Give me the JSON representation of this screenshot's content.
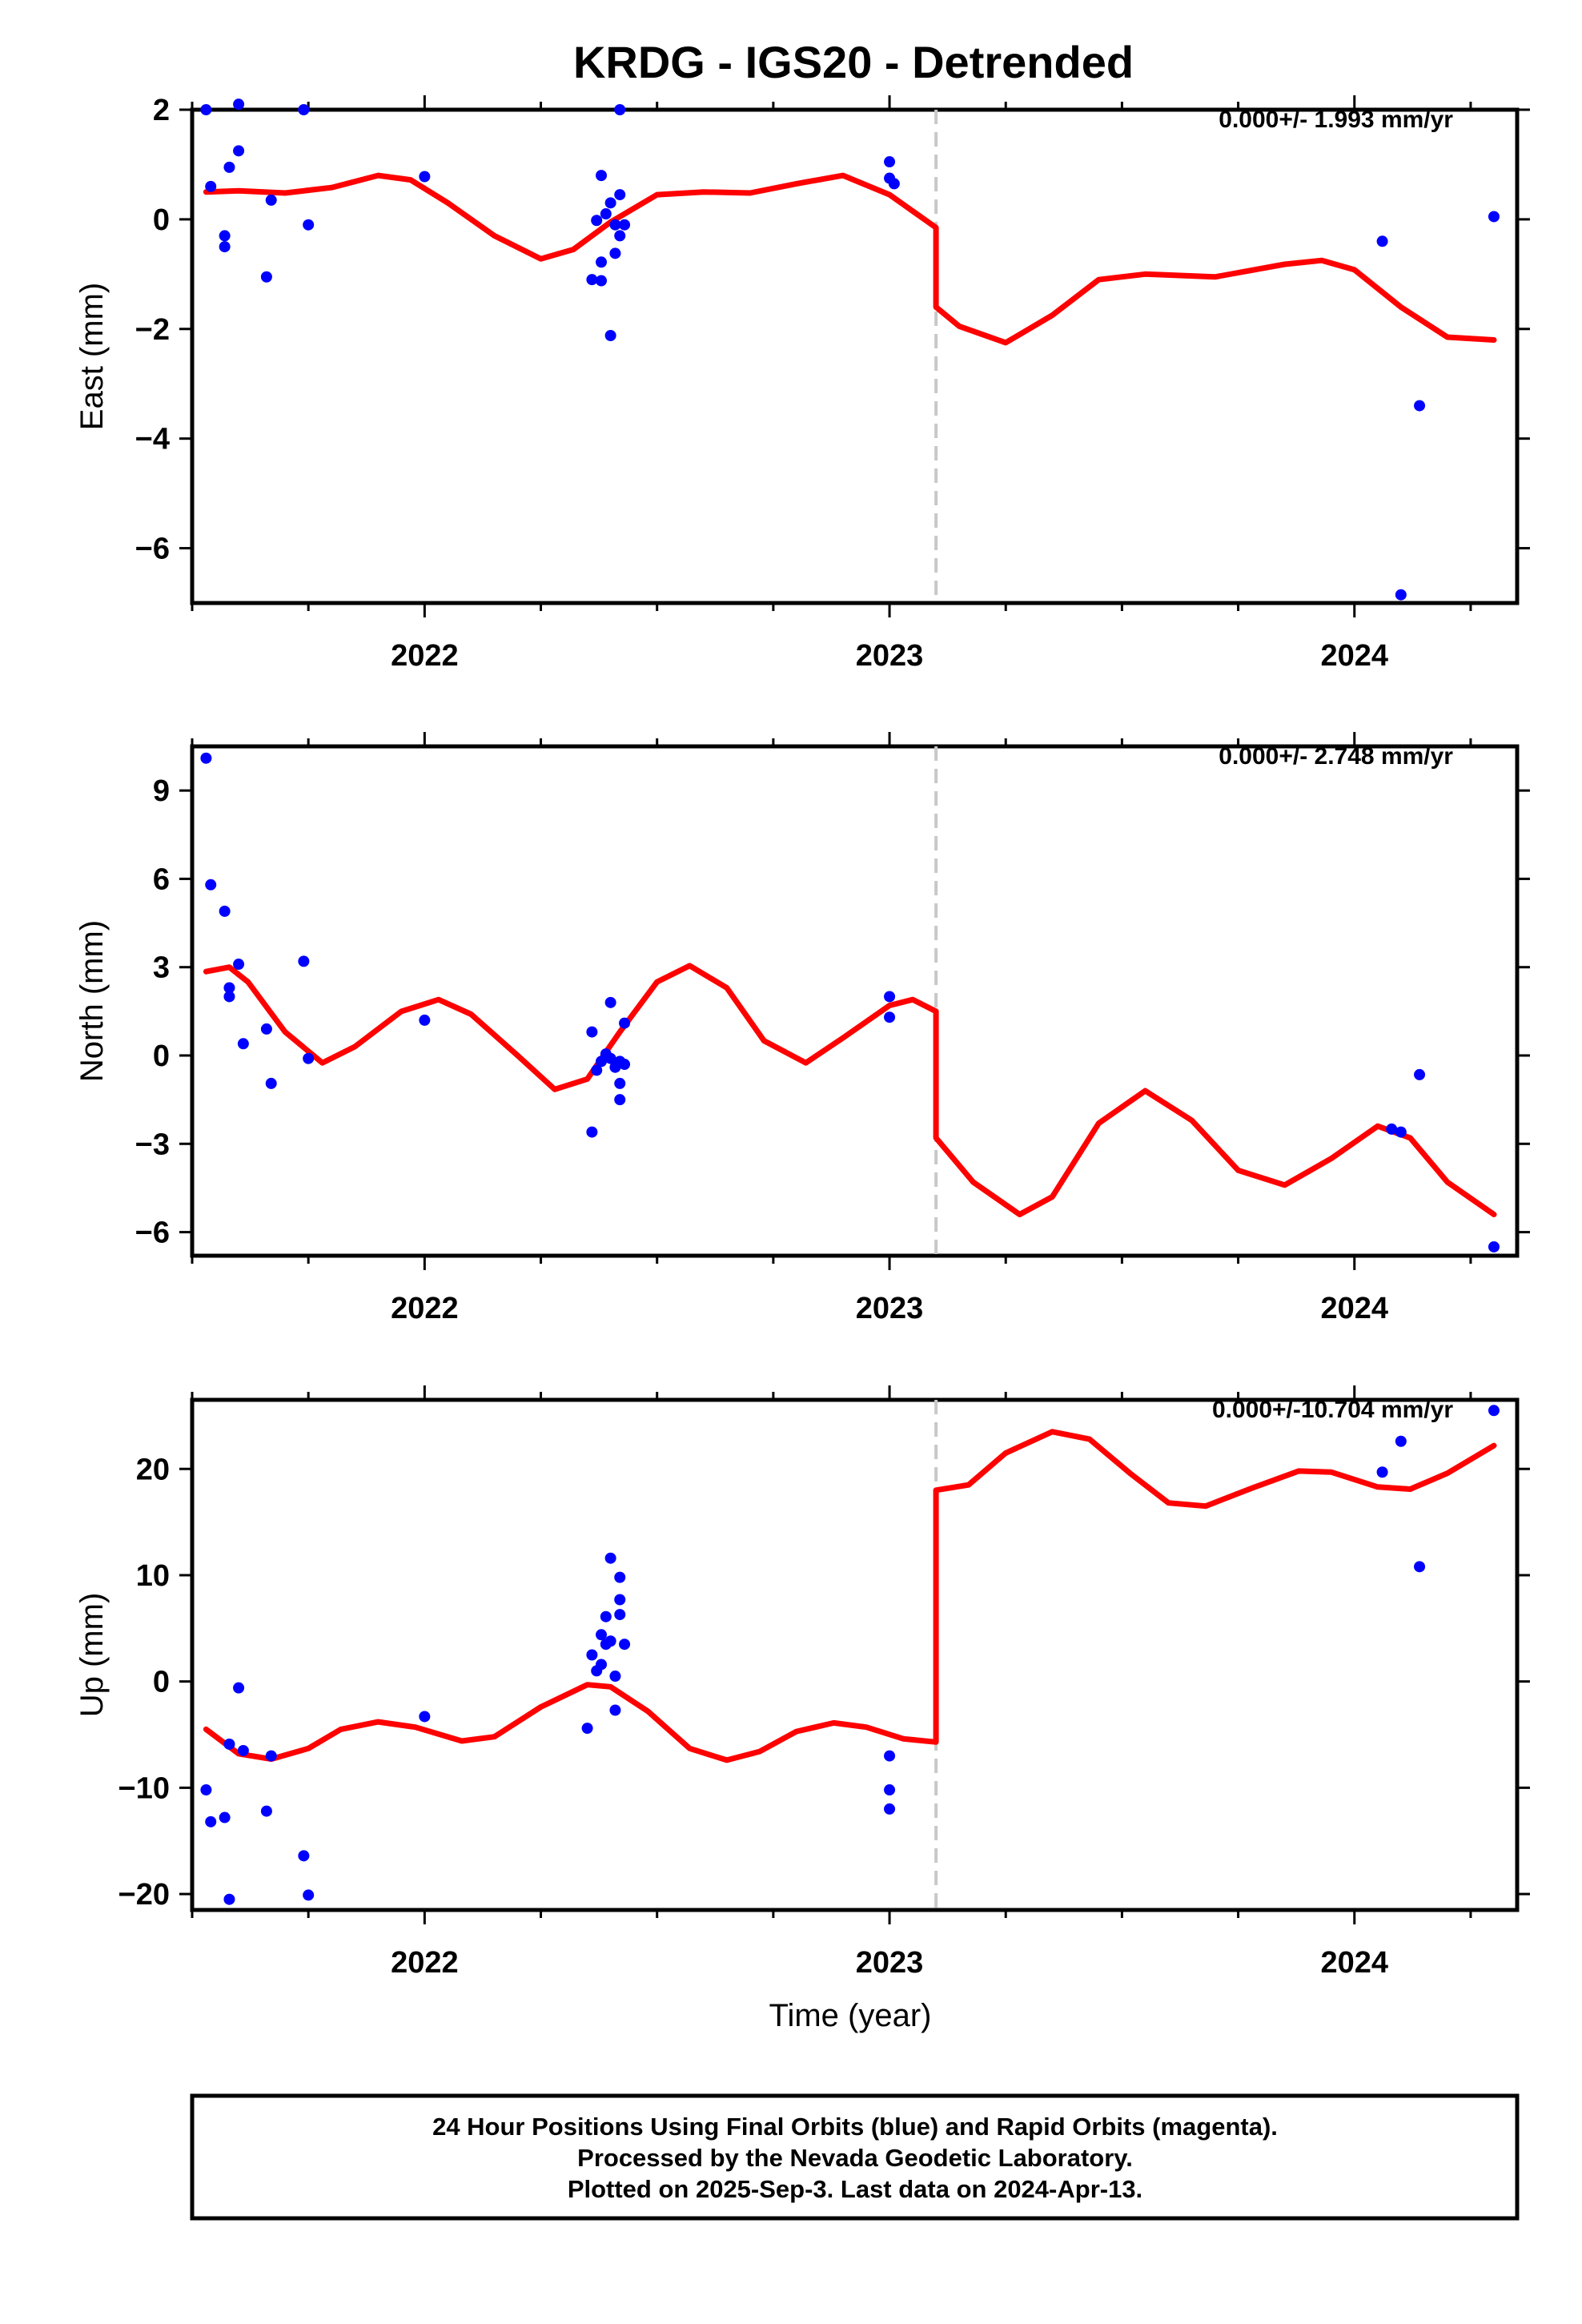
{
  "title": "KRDG - IGS20 - Detrended",
  "caption": [
    "24 Hour Positions Using Final Orbits (blue) and Rapid Orbits (magenta).",
    "Processed by the Nevada Geodetic Laboratory.",
    "Plotted on 2025-Sep-3. Last data on 2024-Apr-13."
  ],
  "colors": {
    "data_points": "#0000ff",
    "model_line": "#ff0000",
    "offset_line": "#c8c8c8",
    "frame": "#000000"
  },
  "chart_data": [
    {
      "type": "scatter",
      "ylabel": "East (mm)",
      "rate_text": "0.000+/- 1.993 mm/yr",
      "xlim": [
        2021.5,
        2024.35
      ],
      "ylim": [
        -7.0,
        2.0
      ],
      "xticks": [
        2022,
        2023,
        2024
      ],
      "xtick_labels": [
        "2022",
        "2023",
        "2024"
      ],
      "yticks": [
        2,
        0,
        -2,
        -4,
        -6
      ],
      "ytick_labels": [
        "2",
        "0",
        "−2",
        "−4",
        "−6"
      ],
      "offset_epoch": 2023.1,
      "series": [
        {
          "kind": "points",
          "points": [
            [
              2021.53,
              2.0
            ],
            [
              2021.54,
              0.6
            ],
            [
              2021.57,
              -0.3
            ],
            [
              2021.57,
              -0.5
            ],
            [
              2021.58,
              0.95
            ],
            [
              2021.6,
              1.25
            ],
            [
              2021.6,
              2.1
            ],
            [
              2021.66,
              -1.05
            ],
            [
              2021.67,
              0.35
            ],
            [
              2021.74,
              2.0
            ],
            [
              2021.75,
              -0.1
            ],
            [
              2022.0,
              0.78
            ],
            [
              2022.36,
              -1.1
            ],
            [
              2022.37,
              -0.02
            ],
            [
              2022.38,
              0.8
            ],
            [
              2022.38,
              -0.78
            ],
            [
              2022.38,
              -1.12
            ],
            [
              2022.39,
              0.1
            ],
            [
              2022.4,
              -2.12
            ],
            [
              2022.4,
              0.3
            ],
            [
              2022.41,
              -0.1
            ],
            [
              2022.41,
              -0.62
            ],
            [
              2022.42,
              0.45
            ],
            [
              2022.42,
              2.0
            ],
            [
              2022.42,
              -0.3
            ],
            [
              2022.43,
              -0.1
            ],
            [
              2023.0,
              1.05
            ],
            [
              2023.0,
              0.75
            ],
            [
              2023.01,
              0.65
            ],
            [
              2024.06,
              -0.4
            ],
            [
              2024.1,
              -6.85
            ],
            [
              2024.14,
              -3.4
            ],
            [
              2024.3,
              0.05
            ]
          ]
        },
        {
          "kind": "model",
          "points": [
            [
              2021.53,
              0.5
            ],
            [
              2021.6,
              0.52
            ],
            [
              2021.7,
              0.48
            ],
            [
              2021.8,
              0.58
            ],
            [
              2021.9,
              0.8
            ],
            [
              2021.97,
              0.72
            ],
            [
              2022.05,
              0.3
            ],
            [
              2022.15,
              -0.3
            ],
            [
              2022.25,
              -0.72
            ],
            [
              2022.32,
              -0.55
            ],
            [
              2022.4,
              -0.05
            ],
            [
              2022.5,
              0.45
            ],
            [
              2022.6,
              0.5
            ],
            [
              2022.7,
              0.48
            ],
            [
              2022.8,
              0.65
            ],
            [
              2022.9,
              0.8
            ],
            [
              2023.0,
              0.45
            ],
            [
              2023.1,
              -0.15
            ],
            [
              2023.1,
              -1.6
            ],
            [
              2023.15,
              -1.95
            ],
            [
              2023.25,
              -2.25
            ],
            [
              2023.35,
              -1.75
            ],
            [
              2023.45,
              -1.1
            ],
            [
              2023.55,
              -1.0
            ],
            [
              2023.7,
              -1.05
            ],
            [
              2023.85,
              -0.82
            ],
            [
              2023.93,
              -0.75
            ],
            [
              2024.0,
              -0.92
            ],
            [
              2024.1,
              -1.6
            ],
            [
              2024.2,
              -2.15
            ],
            [
              2024.3,
              -2.2
            ]
          ]
        }
      ]
    },
    {
      "type": "scatter",
      "ylabel": "North (mm)",
      "rate_text": "0.000+/- 2.748 mm/yr",
      "xlim": [
        2021.5,
        2024.35
      ],
      "ylim": [
        -6.8,
        10.5
      ],
      "xticks": [
        2022,
        2023,
        2024
      ],
      "xtick_labels": [
        "2022",
        "2023",
        "2024"
      ],
      "yticks": [
        9,
        6,
        3,
        0,
        -3,
        -6
      ],
      "ytick_labels": [
        "9",
        "6",
        "3",
        "0",
        "−3",
        "−6"
      ],
      "offset_epoch": 2023.1,
      "series": [
        {
          "kind": "points",
          "points": [
            [
              2021.53,
              10.1
            ],
            [
              2021.54,
              5.8
            ],
            [
              2021.57,
              4.9
            ],
            [
              2021.58,
              2.3
            ],
            [
              2021.58,
              2.0
            ],
            [
              2021.6,
              3.1
            ],
            [
              2021.61,
              0.4
            ],
            [
              2021.66,
              0.9
            ],
            [
              2021.67,
              -0.95
            ],
            [
              2021.74,
              3.2
            ],
            [
              2021.75,
              -0.1
            ],
            [
              2022.0,
              1.2
            ],
            [
              2022.36,
              0.8
            ],
            [
              2022.36,
              -2.6
            ],
            [
              2022.37,
              -0.5
            ],
            [
              2022.38,
              -0.2
            ],
            [
              2022.39,
              0.05
            ],
            [
              2022.4,
              1.8
            ],
            [
              2022.4,
              -0.1
            ],
            [
              2022.41,
              -0.4
            ],
            [
              2022.42,
              -0.2
            ],
            [
              2022.42,
              -0.95
            ],
            [
              2022.42,
              -1.5
            ],
            [
              2022.43,
              -0.3
            ],
            [
              2022.43,
              1.1
            ],
            [
              2023.0,
              2.0
            ],
            [
              2023.0,
              1.3
            ],
            [
              2024.08,
              -2.5
            ],
            [
              2024.1,
              -2.6
            ],
            [
              2024.14,
              -0.65
            ],
            [
              2024.3,
              -6.5
            ]
          ]
        },
        {
          "kind": "model",
          "points": [
            [
              2021.53,
              2.85
            ],
            [
              2021.58,
              3.0
            ],
            [
              2021.62,
              2.5
            ],
            [
              2021.7,
              0.8
            ],
            [
              2021.78,
              -0.25
            ],
            [
              2021.85,
              0.3
            ],
            [
              2021.95,
              1.5
            ],
            [
              2022.03,
              1.9
            ],
            [
              2022.1,
              1.4
            ],
            [
              2022.2,
              0.0
            ],
            [
              2022.28,
              -1.15
            ],
            [
              2022.35,
              -0.8
            ],
            [
              2022.42,
              0.8
            ],
            [
              2022.5,
              2.5
            ],
            [
              2022.57,
              3.05
            ],
            [
              2022.65,
              2.3
            ],
            [
              2022.73,
              0.5
            ],
            [
              2022.82,
              -0.25
            ],
            [
              2022.9,
              0.6
            ],
            [
              2023.0,
              1.7
            ],
            [
              2023.05,
              1.9
            ],
            [
              2023.1,
              1.5
            ],
            [
              2023.1,
              -2.8
            ],
            [
              2023.18,
              -4.3
            ],
            [
              2023.28,
              -5.4
            ],
            [
              2023.35,
              -4.8
            ],
            [
              2023.45,
              -2.3
            ],
            [
              2023.55,
              -1.2
            ],
            [
              2023.65,
              -2.2
            ],
            [
              2023.75,
              -3.9
            ],
            [
              2023.85,
              -4.4
            ],
            [
              2023.95,
              -3.5
            ],
            [
              2024.05,
              -2.4
            ],
            [
              2024.12,
              -2.8
            ],
            [
              2024.2,
              -4.3
            ],
            [
              2024.3,
              -5.4
            ]
          ]
        }
      ]
    },
    {
      "type": "scatter",
      "ylabel": "Up (mm)",
      "xlabel": "Time (year)",
      "rate_text": "0.000+/-10.704 mm/yr",
      "xlim": [
        2021.5,
        2024.35
      ],
      "ylim": [
        -21.5,
        26.5
      ],
      "xticks": [
        2022,
        2023,
        2024
      ],
      "xtick_labels": [
        "2022",
        "2023",
        "2024"
      ],
      "yticks": [
        20,
        10,
        0,
        -10,
        -20
      ],
      "ytick_labels": [
        "20",
        "10",
        "0",
        "−10",
        "−20"
      ],
      "offset_epoch": 2023.1,
      "series": [
        {
          "kind": "points",
          "points": [
            [
              2021.53,
              -10.2
            ],
            [
              2021.54,
              -13.2
            ],
            [
              2021.57,
              -12.8
            ],
            [
              2021.58,
              -20.5
            ],
            [
              2021.58,
              -5.9
            ],
            [
              2021.6,
              -0.6
            ],
            [
              2021.61,
              -6.5
            ],
            [
              2021.66,
              -12.2
            ],
            [
              2021.67,
              -7.0
            ],
            [
              2021.74,
              -16.4
            ],
            [
              2021.75,
              -20.1
            ],
            [
              2022.0,
              -3.3
            ],
            [
              2022.35,
              -4.4
            ],
            [
              2022.36,
              2.5
            ],
            [
              2022.37,
              1.0
            ],
            [
              2022.38,
              1.6
            ],
            [
              2022.38,
              4.4
            ],
            [
              2022.39,
              6.1
            ],
            [
              2022.39,
              3.5
            ],
            [
              2022.4,
              11.6
            ],
            [
              2022.4,
              3.8
            ],
            [
              2022.41,
              -2.7
            ],
            [
              2022.41,
              0.5
            ],
            [
              2022.42,
              9.8
            ],
            [
              2022.42,
              7.7
            ],
            [
              2022.42,
              6.3
            ],
            [
              2022.43,
              3.5
            ],
            [
              2023.0,
              -7.0
            ],
            [
              2023.0,
              -10.2
            ],
            [
              2023.0,
              -12.0
            ],
            [
              2024.06,
              19.7
            ],
            [
              2024.1,
              22.6
            ],
            [
              2024.14,
              10.8
            ],
            [
              2024.3,
              25.5
            ]
          ]
        },
        {
          "kind": "model",
          "points": [
            [
              2021.53,
              -4.5
            ],
            [
              2021.6,
              -6.8
            ],
            [
              2021.67,
              -7.3
            ],
            [
              2021.75,
              -6.3
            ],
            [
              2021.82,
              -4.5
            ],
            [
              2021.9,
              -3.8
            ],
            [
              2021.98,
              -4.3
            ],
            [
              2022.08,
              -5.6
            ],
            [
              2022.15,
              -5.2
            ],
            [
              2022.25,
              -2.4
            ],
            [
              2022.35,
              -0.3
            ],
            [
              2022.4,
              -0.5
            ],
            [
              2022.48,
              -2.8
            ],
            [
              2022.57,
              -6.3
            ],
            [
              2022.65,
              -7.4
            ],
            [
              2022.72,
              -6.6
            ],
            [
              2022.8,
              -4.7
            ],
            [
              2022.88,
              -3.9
            ],
            [
              2022.95,
              -4.3
            ],
            [
              2023.03,
              -5.4
            ],
            [
              2023.1,
              -5.7
            ],
            [
              2023.1,
              18.0
            ],
            [
              2023.17,
              18.5
            ],
            [
              2023.25,
              21.5
            ],
            [
              2023.35,
              23.5
            ],
            [
              2023.43,
              22.8
            ],
            [
              2023.52,
              19.5
            ],
            [
              2023.6,
              16.8
            ],
            [
              2023.68,
              16.5
            ],
            [
              2023.78,
              18.2
            ],
            [
              2023.88,
              19.8
            ],
            [
              2023.95,
              19.7
            ],
            [
              2024.05,
              18.3
            ],
            [
              2024.12,
              18.1
            ],
            [
              2024.2,
              19.6
            ],
            [
              2024.3,
              22.2
            ]
          ]
        }
      ]
    }
  ]
}
